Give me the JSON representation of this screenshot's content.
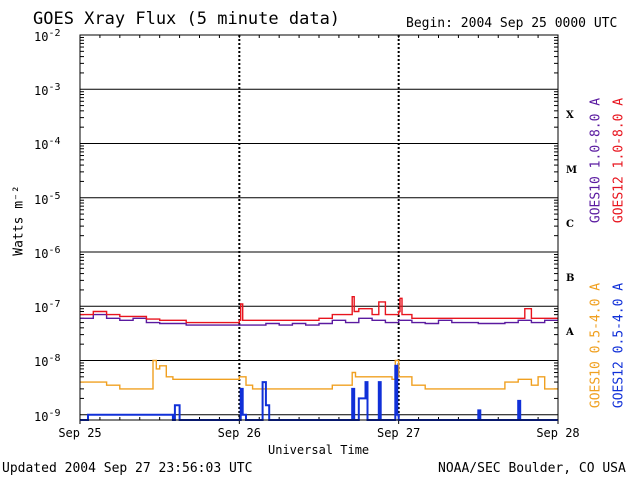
{
  "title": "GOES Xray Flux (5 minute data)",
  "begin": "Begin:  2004 Sep 25 0000 UTC",
  "updated": "Updated 2004 Sep 27 23:56:03 UTC",
  "credit": "NOAA/SEC Boulder, CO USA",
  "flare_classes": [
    "X",
    "M",
    "C",
    "B",
    "A"
  ],
  "colors": {
    "goes10_long": "#5a1aa0",
    "goes12_long": "#e8141e",
    "goes10_short": "#f0a020",
    "goes12_short": "#1030d8"
  },
  "chart_data": {
    "type": "line",
    "title": "GOES Xray Flux (5 minute data)",
    "xlabel": "Universal Time",
    "ylabel": "Watts m⁻²",
    "yscale": "log",
    "ylim": [
      8e-10,
      0.01
    ],
    "xlim": [
      0,
      72
    ],
    "x_unit": "hours since 2004 Sep 25 0000 UTC",
    "x_ticks": [
      {
        "x": 0,
        "label": "Sep 25"
      },
      {
        "x": 24,
        "label": "Sep 26"
      },
      {
        "x": 48,
        "label": "Sep 27"
      },
      {
        "x": 72,
        "label": "Sep 28"
      }
    ],
    "y_ticks": [
      {
        "exp": -2,
        "label": "10",
        "sup": "-2"
      },
      {
        "exp": -3,
        "label": "10",
        "sup": "-3"
      },
      {
        "exp": -4,
        "label": "10",
        "sup": "-4"
      },
      {
        "exp": -5,
        "label": "10",
        "sup": "-5"
      },
      {
        "exp": -6,
        "label": "10",
        "sup": "-6"
      },
      {
        "exp": -7,
        "label": "10",
        "sup": "-7"
      },
      {
        "exp": -8,
        "label": "10",
        "sup": "-8"
      },
      {
        "exp": -9,
        "label": "10",
        "sup": "-9"
      }
    ],
    "grid": true,
    "series": [
      {
        "name": "GOES10 1.0-8.0 A",
        "color": "#5a1aa0",
        "x": [
          0,
          2,
          4,
          6,
          8,
          10,
          12,
          14,
          16,
          18,
          20,
          22,
          24,
          26,
          28,
          30,
          32,
          34,
          36,
          38,
          40,
          42,
          44,
          46,
          48,
          50,
          52,
          54,
          56,
          58,
          60,
          62,
          64,
          66,
          68,
          70,
          72
        ],
        "y": [
          6e-08,
          7e-08,
          6e-08,
          5.5e-08,
          6e-08,
          5e-08,
          4.8e-08,
          4.8e-08,
          4.5e-08,
          4.5e-08,
          4.5e-08,
          4.5e-08,
          4.5e-08,
          4.5e-08,
          4.8e-08,
          4.5e-08,
          4.8e-08,
          4.5e-08,
          4.8e-08,
          5.5e-08,
          5e-08,
          6e-08,
          5.5e-08,
          5e-08,
          5.5e-08,
          5e-08,
          4.8e-08,
          5.5e-08,
          5e-08,
          5e-08,
          4.8e-08,
          4.8e-08,
          5e-08,
          5.5e-08,
          5e-08,
          5.5e-08,
          5.5e-08
        ]
      },
      {
        "name": "GOES12 1.0-8.0 A",
        "color": "#e8141e",
        "x": [
          0,
          2,
          4,
          6,
          8,
          10,
          12,
          14,
          16,
          18,
          20,
          22,
          24,
          24.2,
          24.5,
          26,
          28,
          30,
          32,
          34,
          36,
          38,
          40,
          41,
          41.3,
          42,
          44,
          45,
          46,
          48,
          48.2,
          48.5,
          50,
          52,
          54,
          56,
          58,
          60,
          62,
          64,
          66,
          67,
          68,
          70,
          72
        ],
        "y": [
          7e-08,
          8e-08,
          7e-08,
          6.5e-08,
          6.5e-08,
          5.8e-08,
          5.5e-08,
          5.5e-08,
          5e-08,
          5e-08,
          5e-08,
          5e-08,
          5.5e-08,
          1.1e-07,
          5.5e-08,
          5.5e-08,
          5.5e-08,
          5.5e-08,
          5.5e-08,
          5.5e-08,
          6e-08,
          7e-08,
          7e-08,
          1.5e-07,
          8e-08,
          9e-08,
          7e-08,
          1.2e-07,
          7e-08,
          8e-08,
          1.4e-07,
          7e-08,
          6e-08,
          6e-08,
          6e-08,
          6e-08,
          6e-08,
          6e-08,
          6e-08,
          6e-08,
          6e-08,
          9e-08,
          6e-08,
          6e-08,
          6e-08
        ]
      },
      {
        "name": "GOES10 0.5-4.0 A",
        "color": "#f0a020",
        "x": [
          0,
          2,
          4,
          6,
          8,
          10,
          11,
          11.5,
          12,
          13,
          14,
          15,
          16,
          18,
          20,
          22,
          23,
          24,
          25,
          26,
          28,
          30,
          32,
          34,
          36,
          38,
          40,
          41,
          41.5,
          42,
          44,
          46,
          47,
          47.5,
          48,
          50,
          52,
          54,
          56,
          58,
          60,
          62,
          64,
          66,
          68,
          69,
          70,
          72
        ],
        "y": [
          4e-09,
          4e-09,
          3.5e-09,
          3e-09,
          3e-09,
          3e-09,
          1e-08,
          7e-09,
          8e-09,
          5e-09,
          4.5e-09,
          4.5e-09,
          4.5e-09,
          4.5e-09,
          4.5e-09,
          4.5e-09,
          4.5e-09,
          5e-09,
          3.5e-09,
          3e-09,
          3e-09,
          3e-09,
          3e-09,
          3e-09,
          3e-09,
          3.5e-09,
          3.5e-09,
          6e-09,
          5e-09,
          5e-09,
          5e-09,
          5e-09,
          4.5e-09,
          1e-08,
          5e-09,
          3.5e-09,
          3e-09,
          3e-09,
          3e-09,
          3e-09,
          3e-09,
          3e-09,
          4e-09,
          4.5e-09,
          3.5e-09,
          5e-09,
          3e-09,
          3e-09
        ]
      },
      {
        "name": "GOES12 0.5-4.0 A",
        "color": "#1030d8",
        "x": [
          0,
          1,
          1.2,
          14,
          14.3,
          15,
          24,
          24.2,
          24.5,
          25,
          27.5,
          28,
          28.5,
          41,
          41.3,
          42,
          43,
          43.3,
          45,
          45.3,
          47.5,
          47.8,
          48,
          60,
          60.3,
          66,
          66.3,
          72
        ],
        "y": [
          8e-10,
          8e-10,
          1e-09,
          8e-10,
          1.5e-09,
          8e-10,
          8e-10,
          3e-09,
          1e-09,
          8e-10,
          4e-09,
          1.5e-09,
          8e-10,
          3e-09,
          8e-10,
          2e-09,
          4e-09,
          8e-10,
          4e-09,
          8e-10,
          8e-09,
          1e-09,
          8e-10,
          1.2e-09,
          8e-10,
          1.8e-09,
          8e-10,
          8e-10
        ]
      }
    ]
  }
}
